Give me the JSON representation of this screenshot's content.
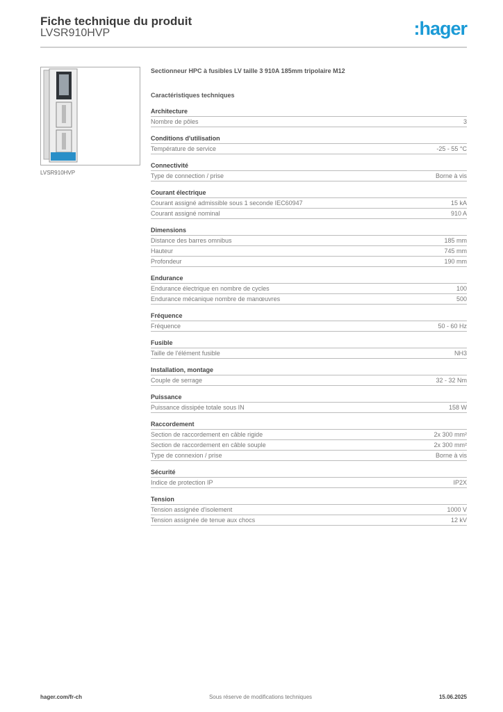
{
  "header": {
    "title": "Fiche technique du produit",
    "reference": "LVSR910HVP",
    "logo": "hager",
    "brand_color": "#1a9ad6"
  },
  "product": {
    "image_caption": "LVSR910HVP",
    "description": "Sectionneur HPC à fusibles LV taille 3 910A 185mm tripolaire M12"
  },
  "section_title": "Caractéristiques techniques",
  "groups": [
    {
      "title": "Architecture",
      "rows": [
        [
          "Nombre de pôles",
          "3"
        ]
      ]
    },
    {
      "title": "Conditions d'utilisation",
      "rows": [
        [
          "Température de service",
          "-25 - 55 °C"
        ]
      ]
    },
    {
      "title": "Connectivité",
      "rows": [
        [
          "Type de connection / prise",
          "Borne à vis"
        ]
      ]
    },
    {
      "title": "Courant électrique",
      "rows": [
        [
          "Courant assigné admissible sous 1 seconde IEC60947",
          "15 kA"
        ],
        [
          "Courant assigné nominal",
          "910 A"
        ]
      ]
    },
    {
      "title": "Dimensions",
      "rows": [
        [
          "Distance des barres omnibus",
          "185 mm"
        ],
        [
          "Hauteur",
          "745 mm"
        ],
        [
          "Profondeur",
          "190 mm"
        ]
      ]
    },
    {
      "title": "Endurance",
      "rows": [
        [
          "Endurance électrique en nombre de cycles",
          "100"
        ],
        [
          "Endurance mécanique nombre de manœuvres",
          "500"
        ]
      ]
    },
    {
      "title": "Fréquence",
      "rows": [
        [
          "Fréquence",
          "50 - 60 Hz"
        ]
      ]
    },
    {
      "title": "Fusible",
      "rows": [
        [
          "Taille de l'élément fusible",
          "NH3"
        ]
      ]
    },
    {
      "title": "Installation, montage",
      "rows": [
        [
          "Couple de serrage",
          "32 - 32 Nm"
        ]
      ]
    },
    {
      "title": "Puissance",
      "rows": [
        [
          "Puissance dissipée totale sous IN",
          "158 W"
        ]
      ]
    },
    {
      "title": "Raccordement",
      "rows": [
        [
          "Section de raccordement en câble rigide",
          "2x 300 mm²"
        ],
        [
          "Section de raccordement en câble souple",
          "2x 300 mm²"
        ],
        [
          "Type de connexion / prise",
          "Borne à vis"
        ]
      ]
    },
    {
      "title": "Sécurité",
      "rows": [
        [
          "Indice de protection IP",
          "IP2X"
        ]
      ]
    },
    {
      "title": "Tension",
      "rows": [
        [
          "Tension assignée d'isolement",
          "1000 V"
        ],
        [
          "Tension assignée de tenue aux chocs",
          "12 kV"
        ]
      ]
    }
  ],
  "footer": {
    "website": "hager.com/fr-ch",
    "notice": "Sous réserve de modifications techniques",
    "date": "15.06.2025"
  }
}
